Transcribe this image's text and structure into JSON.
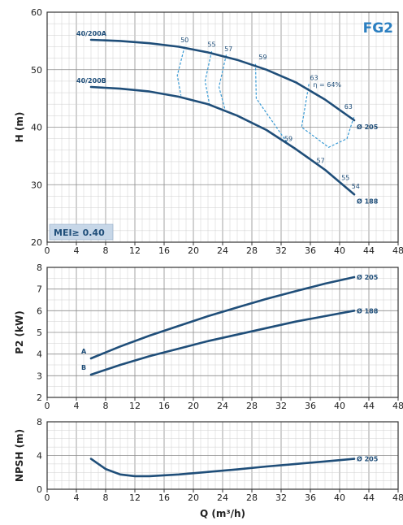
{
  "chart_data": [
    {
      "type": "line",
      "id": "head",
      "badge": "FG2",
      "mei_label": "MEI≥ 0.40",
      "ylabel": "H (m)",
      "xlim": [
        0,
        48
      ],
      "ylim": [
        20,
        60
      ],
      "x_ticks": [
        "0",
        "4",
        "8",
        "12",
        "16",
        "20",
        "24",
        "28",
        "32",
        "36",
        "40",
        "44",
        "48"
      ],
      "y_ticks": [
        "20",
        "30",
        "40",
        "50",
        "60"
      ],
      "series": [
        {
          "name": "40/200A",
          "end_label": "Ø 205",
          "x": [
            6,
            10,
            14,
            18,
            22,
            26,
            30,
            34,
            38,
            42
          ],
          "y": [
            55.2,
            55.0,
            54.6,
            54.0,
            53.0,
            51.7,
            50.0,
            47.8,
            44.8,
            41.2
          ]
        },
        {
          "name": "40/200B",
          "end_label": "Ø 188",
          "x": [
            6,
            10,
            14,
            18,
            22,
            26,
            30,
            34,
            38,
            42
          ],
          "y": [
            47.0,
            46.7,
            46.2,
            45.3,
            44.0,
            42.0,
            39.5,
            36.2,
            32.6,
            28.3
          ]
        }
      ],
      "efficiency_labels": [
        {
          "text": "50",
          "x": 18.8,
          "y": 54.8
        },
        {
          "text": "55",
          "x": 22.5,
          "y": 54.0
        },
        {
          "text": "57",
          "x": 24.8,
          "y": 53.2
        },
        {
          "text": "59",
          "x": 29.5,
          "y": 51.8
        },
        {
          "text": "63",
          "x": 36.5,
          "y": 48.2
        },
        {
          "text": "η = 64%",
          "x": 38.3,
          "y": 47.0
        },
        {
          "text": "63",
          "x": 41.2,
          "y": 43.2
        },
        {
          "text": "59",
          "x": 33.0,
          "y": 37.6
        },
        {
          "text": "57",
          "x": 37.4,
          "y": 33.8
        },
        {
          "text": "55",
          "x": 40.8,
          "y": 30.8
        },
        {
          "text": "54",
          "x": 42.2,
          "y": 29.3
        }
      ]
    },
    {
      "type": "line",
      "id": "power",
      "ylabel": "P2 (kW)",
      "xlim": [
        0,
        48
      ],
      "ylim": [
        2,
        8
      ],
      "x_ticks": [
        "0",
        "4",
        "8",
        "12",
        "16",
        "20",
        "24",
        "28",
        "32",
        "36",
        "40",
        "44",
        "48"
      ],
      "y_ticks": [
        "2",
        "3",
        "4",
        "5",
        "6",
        "7",
        "8"
      ],
      "series": [
        {
          "name": "A",
          "end_label": "Ø 205",
          "x": [
            6,
            10,
            14,
            18,
            22,
            26,
            30,
            34,
            38,
            42
          ],
          "y": [
            3.8,
            4.35,
            4.85,
            5.3,
            5.75,
            6.15,
            6.55,
            6.9,
            7.25,
            7.55
          ]
        },
        {
          "name": "B",
          "end_label": "Ø 188",
          "x": [
            6,
            10,
            14,
            18,
            22,
            26,
            30,
            34,
            38,
            42
          ],
          "y": [
            3.05,
            3.5,
            3.9,
            4.25,
            4.6,
            4.9,
            5.2,
            5.5,
            5.75,
            6.0
          ]
        }
      ]
    },
    {
      "type": "line",
      "id": "npsh",
      "ylabel": "NPSH (m)",
      "xlabel": "Q (m³/h)",
      "xlim": [
        0,
        48
      ],
      "ylim": [
        0,
        8
      ],
      "x_ticks": [
        "0",
        "4",
        "8",
        "12",
        "16",
        "20",
        "24",
        "28",
        "32",
        "36",
        "40",
        "44",
        "48"
      ],
      "y_ticks": [
        "0",
        "4",
        "8"
      ],
      "series": [
        {
          "name": "NPSH",
          "end_label": "Ø 205",
          "x": [
            6,
            8,
            10,
            12,
            14,
            18,
            22,
            26,
            30,
            34,
            38,
            42
          ],
          "y": [
            3.6,
            2.4,
            1.75,
            1.55,
            1.55,
            1.75,
            2.05,
            2.35,
            2.7,
            3.0,
            3.3,
            3.6
          ]
        }
      ]
    }
  ]
}
